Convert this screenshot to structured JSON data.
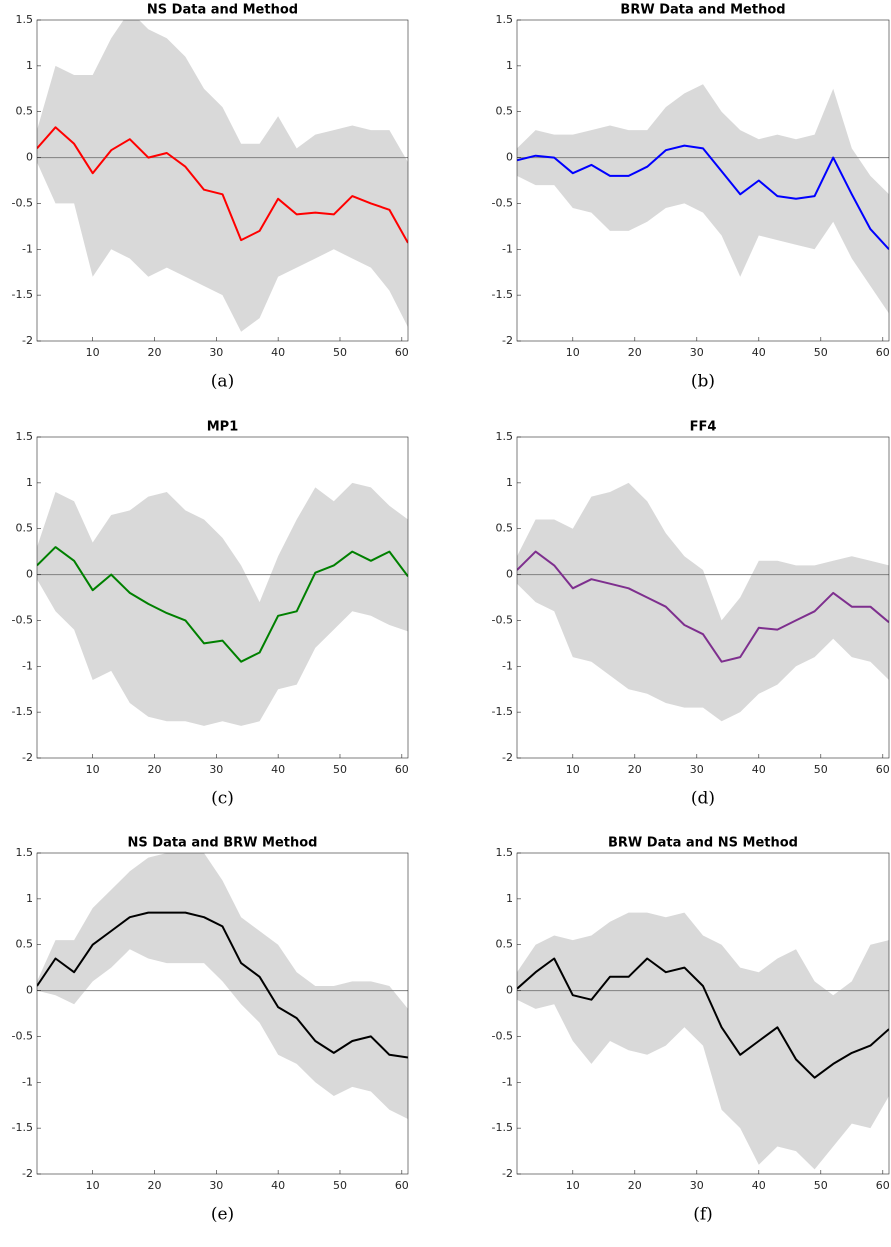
{
  "chart_data": [
    {
      "type": "line",
      "title": "NS Data and Method",
      "caption": "(a)",
      "color": "#ff0000",
      "band_color": "#d9d9d9",
      "x": [
        1,
        4,
        7,
        10,
        13,
        16,
        19,
        22,
        25,
        28,
        31,
        34,
        37,
        40,
        43,
        46,
        49,
        52,
        55,
        58,
        61
      ],
      "values": [
        0.1,
        0.33,
        0.15,
        -0.17,
        0.08,
        0.2,
        0.0,
        0.05,
        -0.1,
        -0.35,
        -0.4,
        -0.9,
        -0.8,
        -0.45,
        -0.62,
        -0.6,
        -0.62,
        -0.42,
        -0.5,
        -0.57,
        -0.93
      ],
      "band_upper": [
        0.3,
        1.0,
        0.9,
        0.9,
        1.3,
        1.6,
        1.4,
        1.3,
        1.1,
        0.75,
        0.55,
        0.15,
        0.15,
        0.45,
        0.1,
        0.25,
        0.3,
        0.35,
        0.3,
        0.3,
        -0.05
      ],
      "band_lower": [
        -0.05,
        -0.5,
        -0.5,
        -1.3,
        -1.0,
        -1.1,
        -1.3,
        -1.2,
        -1.3,
        -1.4,
        -1.5,
        -1.9,
        -1.75,
        -1.3,
        -1.2,
        -1.1,
        -1.0,
        -1.1,
        -1.2,
        -1.45,
        -1.85
      ],
      "xlim": [
        1,
        61
      ],
      "ylim": [
        -2,
        1.5
      ],
      "xticks": [
        10,
        20,
        30,
        40,
        50,
        60
      ],
      "yticks": [
        -2,
        -1.5,
        -1,
        -0.5,
        0,
        0.5,
        1,
        1.5
      ],
      "reference_line": 0
    },
    {
      "type": "line",
      "title": "BRW Data and Method",
      "caption": "(b)",
      "color": "#0000ff",
      "band_color": "#d9d9d9",
      "x": [
        1,
        4,
        7,
        10,
        13,
        16,
        19,
        22,
        25,
        28,
        31,
        34,
        37,
        40,
        43,
        46,
        49,
        52,
        55,
        58,
        61
      ],
      "values": [
        -0.03,
        0.02,
        0.0,
        -0.17,
        -0.08,
        -0.2,
        -0.2,
        -0.1,
        0.08,
        0.13,
        0.1,
        -0.15,
        -0.4,
        -0.25,
        -0.42,
        -0.45,
        -0.42,
        0.0,
        -0.4,
        -0.78,
        -1.0
      ],
      "band_upper": [
        0.1,
        0.3,
        0.25,
        0.25,
        0.3,
        0.35,
        0.3,
        0.3,
        0.55,
        0.7,
        0.8,
        0.5,
        0.3,
        0.2,
        0.25,
        0.2,
        0.25,
        0.75,
        0.1,
        -0.2,
        -0.4
      ],
      "band_lower": [
        -0.2,
        -0.3,
        -0.3,
        -0.55,
        -0.6,
        -0.8,
        -0.8,
        -0.7,
        -0.55,
        -0.5,
        -0.6,
        -0.85,
        -1.3,
        -0.85,
        -0.9,
        -0.95,
        -1.0,
        -0.7,
        -1.1,
        -1.4,
        -1.7
      ],
      "xlim": [
        1,
        61
      ],
      "ylim": [
        -2,
        1.5
      ],
      "xticks": [
        10,
        20,
        30,
        40,
        50,
        60
      ],
      "yticks": [
        -2,
        -1.5,
        -1,
        -0.5,
        0,
        0.5,
        1,
        1.5
      ],
      "reference_line": 0
    },
    {
      "type": "line",
      "title": "MP1",
      "caption": "(c)",
      "color": "#008000",
      "band_color": "#d9d9d9",
      "x": [
        1,
        4,
        7,
        10,
        13,
        16,
        19,
        22,
        25,
        28,
        31,
        34,
        37,
        40,
        43,
        46,
        49,
        52,
        55,
        58,
        61
      ],
      "values": [
        0.1,
        0.3,
        0.15,
        -0.17,
        0.0,
        -0.2,
        -0.32,
        -0.42,
        -0.5,
        -0.75,
        -0.72,
        -0.95,
        -0.85,
        -0.45,
        -0.4,
        0.02,
        0.1,
        0.25,
        0.15,
        0.25,
        -0.02
      ],
      "band_upper": [
        0.3,
        0.9,
        0.8,
        0.35,
        0.65,
        0.7,
        0.85,
        0.9,
        0.7,
        0.6,
        0.4,
        0.1,
        -0.3,
        0.2,
        0.6,
        0.95,
        0.8,
        1.0,
        0.95,
        0.75,
        0.6
      ],
      "band_lower": [
        -0.05,
        -0.4,
        -0.6,
        -1.15,
        -1.05,
        -1.4,
        -1.55,
        -1.6,
        -1.6,
        -1.65,
        -1.6,
        -1.65,
        -1.6,
        -1.25,
        -1.2,
        -0.8,
        -0.6,
        -0.4,
        -0.45,
        -0.55,
        -0.62
      ],
      "xlim": [
        1,
        61
      ],
      "ylim": [
        -2,
        1.5
      ],
      "xticks": [
        10,
        20,
        30,
        40,
        50,
        60
      ],
      "yticks": [
        -2,
        -1.5,
        -1,
        -0.5,
        0,
        0.5,
        1,
        1.5
      ],
      "reference_line": 0
    },
    {
      "type": "line",
      "title": "FF4",
      "caption": "(d)",
      "color": "#7e2f8e",
      "band_color": "#d9d9d9",
      "x": [
        1,
        4,
        7,
        10,
        13,
        16,
        19,
        22,
        25,
        28,
        31,
        34,
        37,
        40,
        43,
        46,
        49,
        52,
        55,
        58,
        61
      ],
      "values": [
        0.05,
        0.25,
        0.1,
        -0.15,
        -0.05,
        -0.1,
        -0.15,
        -0.25,
        -0.35,
        -0.55,
        -0.65,
        -0.95,
        -0.9,
        -0.58,
        -0.6,
        -0.5,
        -0.4,
        -0.2,
        -0.35,
        -0.35,
        -0.52
      ],
      "band_upper": [
        0.2,
        0.6,
        0.6,
        0.5,
        0.85,
        0.9,
        1.0,
        0.8,
        0.45,
        0.2,
        0.05,
        -0.5,
        -0.25,
        0.15,
        0.15,
        0.1,
        0.1,
        0.15,
        0.2,
        0.15,
        0.1
      ],
      "band_lower": [
        -0.1,
        -0.3,
        -0.4,
        -0.9,
        -0.95,
        -1.1,
        -1.25,
        -1.3,
        -1.4,
        -1.45,
        -1.45,
        -1.6,
        -1.5,
        -1.3,
        -1.2,
        -1.0,
        -0.9,
        -0.7,
        -0.9,
        -0.95,
        -1.15
      ],
      "xlim": [
        1,
        61
      ],
      "ylim": [
        -2,
        1.5
      ],
      "xticks": [
        10,
        20,
        30,
        40,
        50,
        60
      ],
      "yticks": [
        -2,
        -1.5,
        -1,
        -0.5,
        0,
        0.5,
        1,
        1.5
      ],
      "reference_line": 0
    },
    {
      "type": "line",
      "title": "NS Data and BRW Method",
      "caption": "(e)",
      "color": "#000000",
      "band_color": "#d9d9d9",
      "x": [
        1,
        4,
        7,
        10,
        13,
        16,
        19,
        22,
        25,
        28,
        31,
        34,
        37,
        40,
        43,
        46,
        49,
        52,
        55,
        58,
        61
      ],
      "values": [
        0.05,
        0.35,
        0.2,
        0.5,
        0.65,
        0.8,
        0.85,
        0.85,
        0.85,
        0.8,
        0.7,
        0.3,
        0.15,
        -0.18,
        -0.3,
        -0.55,
        -0.68,
        -0.55,
        -0.5,
        -0.7,
        -0.73
      ],
      "band_upper": [
        0.1,
        0.55,
        0.55,
        0.9,
        1.1,
        1.3,
        1.45,
        1.5,
        1.5,
        1.5,
        1.2,
        0.8,
        0.65,
        0.5,
        0.2,
        0.05,
        0.05,
        0.1,
        0.1,
        0.05,
        -0.2
      ],
      "band_lower": [
        0.0,
        -0.05,
        -0.15,
        0.1,
        0.25,
        0.45,
        0.35,
        0.3,
        0.3,
        0.3,
        0.1,
        -0.15,
        -0.35,
        -0.7,
        -0.8,
        -1.0,
        -1.15,
        -1.05,
        -1.1,
        -1.3,
        -1.4
      ],
      "xlim": [
        1,
        61
      ],
      "ylim": [
        -2,
        1.5
      ],
      "xticks": [
        10,
        20,
        30,
        40,
        50,
        60
      ],
      "yticks": [
        -2,
        -1.5,
        -1,
        -0.5,
        0,
        0.5,
        1,
        1.5
      ],
      "reference_line": 0
    },
    {
      "type": "line",
      "title": "BRW Data and NS Method",
      "caption": "(f)",
      "color": "#000000",
      "band_color": "#d9d9d9",
      "x": [
        1,
        4,
        7,
        10,
        13,
        16,
        19,
        22,
        25,
        28,
        31,
        34,
        37,
        40,
        43,
        46,
        49,
        52,
        55,
        58,
        61
      ],
      "values": [
        0.02,
        0.2,
        0.35,
        -0.05,
        -0.1,
        0.15,
        0.15,
        0.35,
        0.2,
        0.25,
        0.05,
        -0.4,
        -0.7,
        -0.55,
        -0.4,
        -0.75,
        -0.95,
        -0.8,
        -0.68,
        -0.6,
        -0.42
      ],
      "band_upper": [
        0.2,
        0.5,
        0.6,
        0.55,
        0.6,
        0.75,
        0.85,
        0.85,
        0.8,
        0.85,
        0.6,
        0.5,
        0.25,
        0.2,
        0.35,
        0.45,
        0.1,
        -0.05,
        0.1,
        0.5,
        0.55
      ],
      "band_lower": [
        -0.1,
        -0.2,
        -0.15,
        -0.55,
        -0.8,
        -0.55,
        -0.65,
        -0.7,
        -0.6,
        -0.4,
        -0.6,
        -1.3,
        -1.5,
        -1.9,
        -1.7,
        -1.75,
        -1.95,
        -1.7,
        -1.45,
        -1.5,
        -1.15
      ],
      "xlim": [
        1,
        61
      ],
      "ylim": [
        -2,
        1.5
      ],
      "xticks": [
        10,
        20,
        30,
        40,
        50,
        60
      ],
      "yticks": [
        -2,
        -1.5,
        -1,
        -0.5,
        0,
        0.5,
        1,
        1.5
      ],
      "reference_line": 0
    }
  ]
}
